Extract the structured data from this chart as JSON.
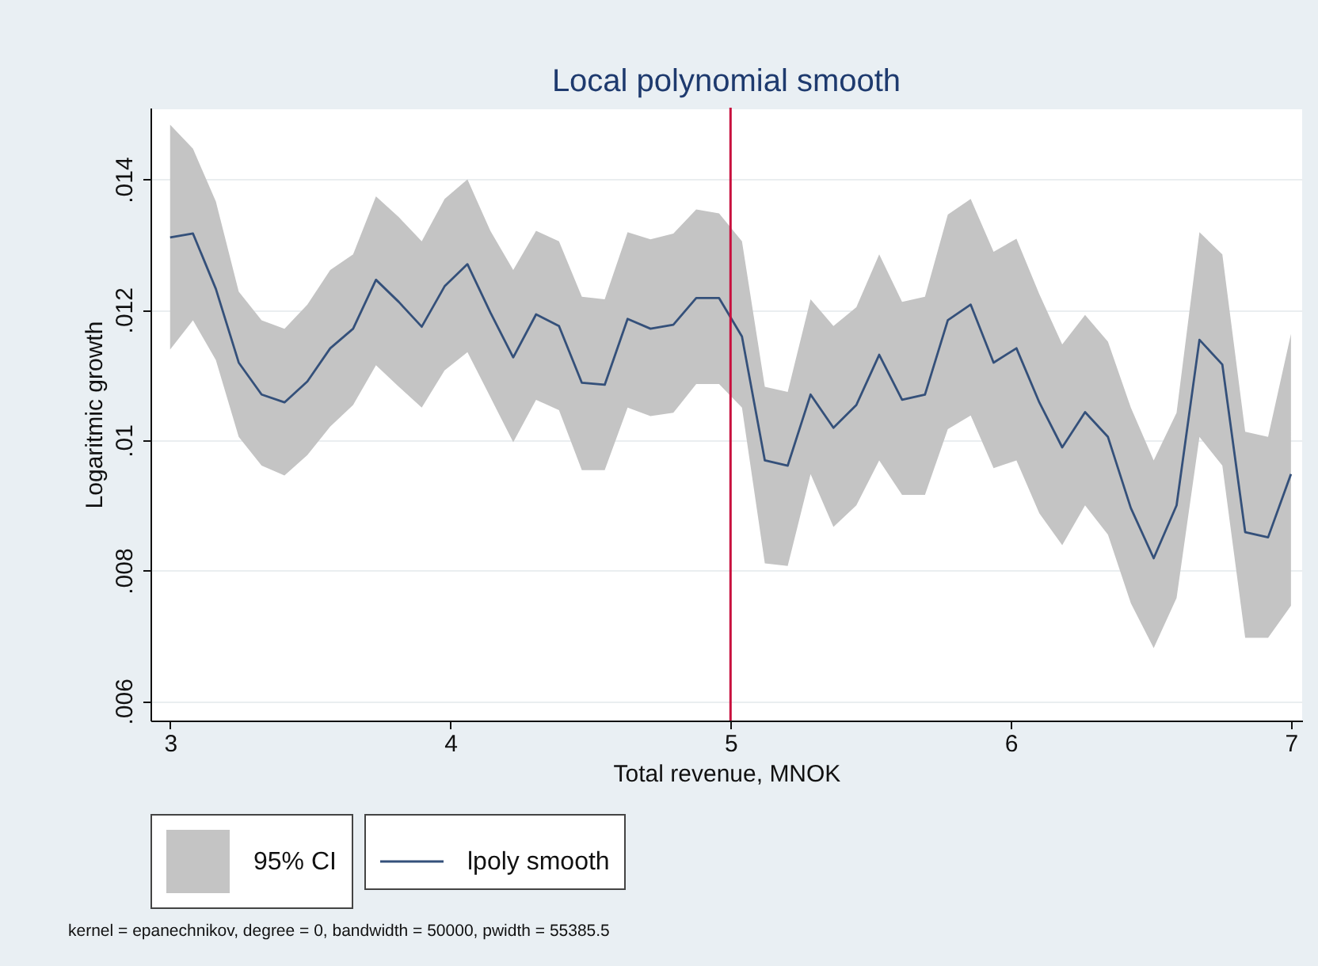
{
  "chart_data": {
    "type": "line",
    "title": "Local polynomial smooth",
    "xlabel": "Total revenue, MNOK",
    "ylabel": "Logaritmic growth",
    "x": [
      3.0,
      3.0816,
      3.1633,
      3.2449,
      3.3265,
      3.4082,
      3.4898,
      3.5714,
      3.6531,
      3.7347,
      3.8163,
      3.898,
      3.9796,
      4.0612,
      4.1429,
      4.2245,
      4.3061,
      4.3878,
      4.4694,
      4.551,
      4.6327,
      4.7143,
      4.7959,
      4.8776,
      4.9592,
      5.0408,
      5.1224,
      5.2041,
      5.2857,
      5.3673,
      5.449,
      5.5306,
      5.6122,
      5.6939,
      5.7755,
      5.8571,
      5.9388,
      6.0204,
      6.102,
      6.1837,
      6.2653,
      6.3469,
      6.4286,
      6.5102,
      6.5918,
      6.6735,
      6.7551,
      6.8367,
      6.9184,
      7.0
    ],
    "series": [
      {
        "name": "lpoly smooth",
        "color": "#34507a",
        "values": [
          0.01311,
          0.01317,
          0.01232,
          0.01119,
          0.0107,
          0.01058,
          0.0109,
          0.01141,
          0.01171,
          0.01246,
          0.01212,
          0.01174,
          0.01236,
          0.0127,
          0.01196,
          0.01127,
          0.01193,
          0.01175,
          0.01088,
          0.01085,
          0.01186,
          0.01171,
          0.01177,
          0.01218,
          0.01218,
          0.01159,
          0.00969,
          0.00961,
          0.0107,
          0.01019,
          0.01054,
          0.01131,
          0.01062,
          0.0107,
          0.01184,
          0.01208,
          0.01119,
          0.01141,
          0.01058,
          0.00989,
          0.01043,
          0.01005,
          0.00896,
          0.00819,
          0.009,
          0.01154,
          0.01116,
          0.00859,
          0.00851,
          0.00948
        ],
        "upper": [
          0.01484,
          0.01447,
          0.01366,
          0.01228,
          0.01184,
          0.01171,
          0.01208,
          0.01261,
          0.01285,
          0.01374,
          0.01342,
          0.01305,
          0.0137,
          0.014,
          0.01321,
          0.01261,
          0.01321,
          0.01305,
          0.0122,
          0.01216,
          0.01319,
          0.01308,
          0.01317,
          0.01354,
          0.01348,
          0.01305,
          0.01082,
          0.01074,
          0.01216,
          0.01175,
          0.01204,
          0.01285,
          0.01212,
          0.0122,
          0.01346,
          0.0137,
          0.01289,
          0.01309,
          0.01224,
          0.01147,
          0.01192,
          0.01151,
          0.0105,
          0.00969,
          0.01042,
          0.01319,
          0.01285,
          0.01013,
          0.01005,
          0.01163
        ],
        "lower": [
          0.01139,
          0.01184,
          0.01123,
          0.01005,
          0.00961,
          0.00946,
          0.00977,
          0.01021,
          0.01054,
          0.01115,
          0.01082,
          0.0105,
          0.01107,
          0.01135,
          0.01066,
          0.00997,
          0.01062,
          0.01046,
          0.00954,
          0.00954,
          0.0105,
          0.01037,
          0.01042,
          0.01086,
          0.01086,
          0.0105,
          0.00811,
          0.00807,
          0.00948,
          0.00867,
          0.009,
          0.00969,
          0.00916,
          0.00916,
          0.01017,
          0.01038,
          0.00957,
          0.00969,
          0.00888,
          0.00839,
          0.009,
          0.00855,
          0.0075,
          0.00681,
          0.00758,
          0.01005,
          0.00961,
          0.00697,
          0.00697,
          0.00746
        ]
      }
    ],
    "xlim": [
      2.93,
      7.04
    ],
    "xticks": [
      3,
      4,
      5,
      6,
      7
    ],
    "ylim": [
      0.0057,
      0.0151
    ],
    "yticks": [
      {
        "value": 0.006,
        "label": ".006"
      },
      {
        "value": 0.008,
        "label": ".008"
      },
      {
        "value": 0.01,
        "label": ".01"
      },
      {
        "value": 0.012,
        "label": ".012"
      },
      {
        "value": 0.014,
        "label": ".014"
      }
    ],
    "ref_lines": [
      {
        "axis": "x",
        "value": 5,
        "color": "#c8103e"
      }
    ],
    "annotations": [
      "95% CI",
      "kernel = epanechnikov, degree = 0, bandwidth = 50000, pwidth = 55385.5"
    ],
    "grid": "y",
    "legend": "bottom",
    "marker": "none",
    "line_style": "solid"
  }
}
